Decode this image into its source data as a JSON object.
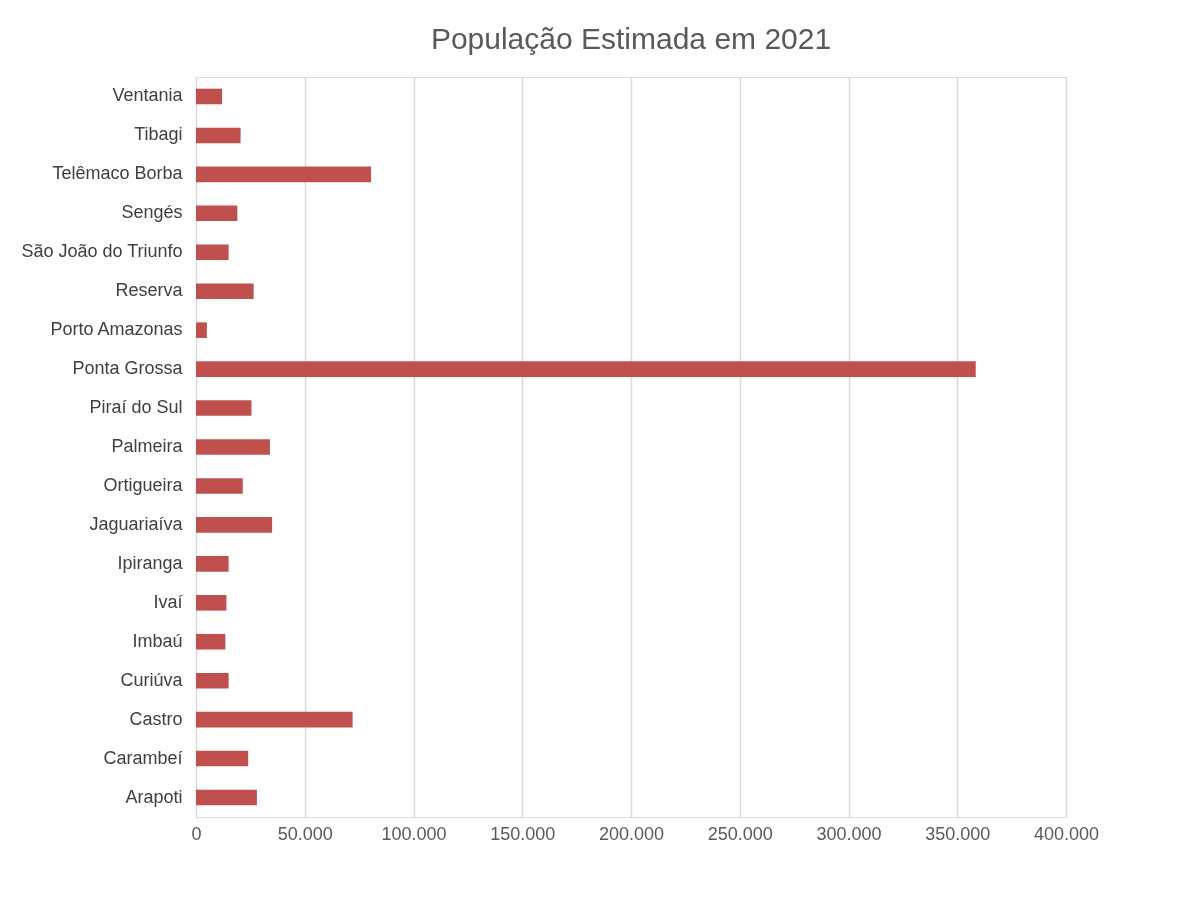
{
  "chart_data": {
    "type": "bar",
    "orientation": "horizontal",
    "title": "População Estimada em 2021",
    "categories": [
      "Ventania",
      "Tibagi",
      "Telêmaco Borba",
      "Sengés",
      "São João do Triunfo",
      "Reserva",
      "Porto Amazonas",
      "Ponta Grossa",
      "Piraí do Sul",
      "Palmeira",
      "Ortigueira",
      "Jaguariaíva",
      "Ipiranga",
      "Ivaí",
      "Imbaú",
      "Curiúva",
      "Castro",
      "Carambeí",
      "Arapoti"
    ],
    "values": [
      12000,
      20500,
      80500,
      19000,
      15000,
      26500,
      5000,
      358500,
      25500,
      34000,
      21500,
      35000,
      15000,
      14000,
      13500,
      15000,
      72000,
      24000,
      28000
    ],
    "color": "#c0504d",
    "xlim": [
      0,
      400000
    ],
    "xticks": [
      0,
      {
        "value": 50000,
        "label": "50.000"
      },
      {
        "value": 100000,
        "label": "100.000"
      },
      {
        "value": 150000,
        "label": "150.000"
      },
      {
        "value": 200000,
        "label": "200.000"
      },
      {
        "value": 250000,
        "label": "250.000"
      },
      {
        "value": 300000,
        "label": "300.000"
      },
      {
        "value": 350000,
        "label": "350.000"
      },
      {
        "value": 400000,
        "label": "400.000"
      }
    ],
    "grid": "x"
  }
}
